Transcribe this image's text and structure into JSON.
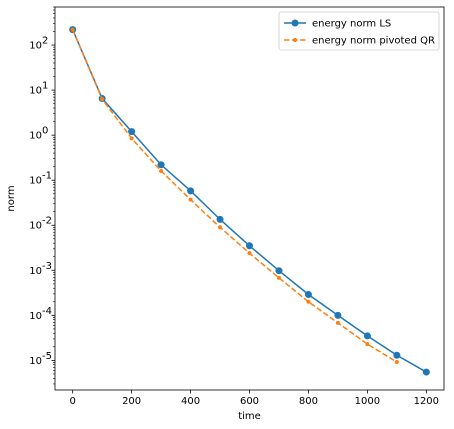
{
  "chart_data": {
    "type": "line",
    "title": "",
    "xlabel": "time",
    "ylabel": "norm",
    "xlim": [
      -60,
      1260
    ],
    "ylim": [
      2.2e-06,
      700
    ],
    "yscale": "log",
    "grid": false,
    "legend_position": "top-right",
    "x_ticks": [
      0,
      200,
      400,
      600,
      800,
      1000,
      1200
    ],
    "x_tick_labels": [
      "0",
      "200",
      "400",
      "600",
      "800",
      "1000",
      "1200"
    ],
    "y_ticks_exp": [
      -5,
      -4,
      -3,
      -2,
      -1,
      0,
      1,
      2
    ],
    "series": [
      {
        "name": "energy norm LS",
        "color": "#1f77b4",
        "style": "solid",
        "marker": "circle",
        "x": [
          0,
          100,
          200,
          300,
          400,
          500,
          600,
          700,
          800,
          900,
          1000,
          1100,
          1200
        ],
        "y": [
          220,
          6.5,
          1.2,
          0.22,
          0.058,
          0.0135,
          0.0035,
          0.00098,
          0.00029,
          0.0001,
          3.5e-05,
          1.3e-05,
          5.5e-06
        ]
      },
      {
        "name": "energy norm pivoted QR",
        "color": "#ff7f0e",
        "style": "dashed",
        "marker": "dot",
        "x": [
          0,
          100,
          200,
          300,
          400,
          500,
          600,
          700,
          800,
          900,
          1000,
          1100
        ],
        "y": [
          220,
          6.3,
          0.85,
          0.16,
          0.037,
          0.009,
          0.0024,
          0.00068,
          0.0002,
          6.8e-05,
          2.3e-05,
          9.2e-06
        ]
      }
    ]
  }
}
